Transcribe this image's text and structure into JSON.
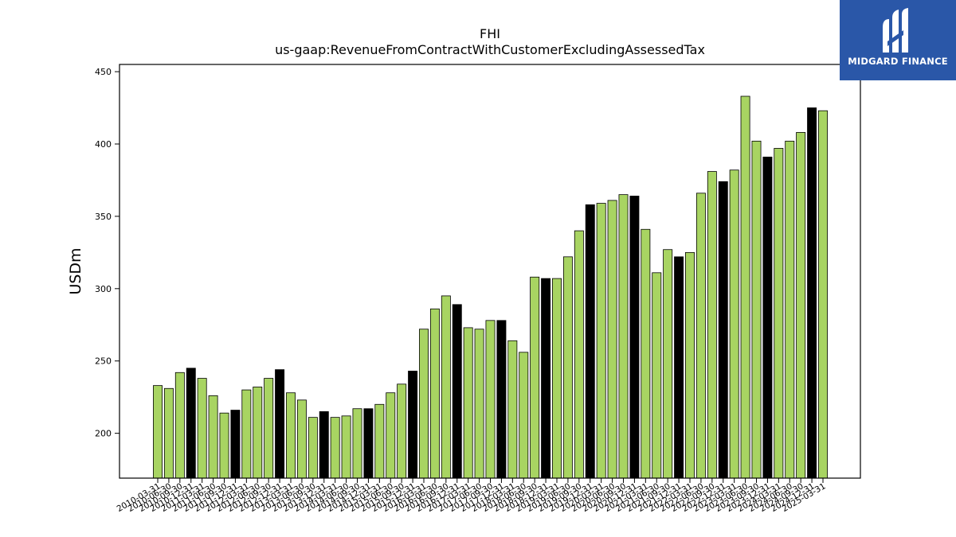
{
  "chart_data": {
    "type": "bar",
    "title": "FHI",
    "subtitle": "us-gaap:RevenueFromContractWithCustomerExcludingAssessedTax",
    "ylabel": "USDm",
    "xlabel": "",
    "ylim": [
      169,
      455
    ],
    "yticks": [
      200,
      250,
      300,
      350,
      400,
      450
    ],
    "grid": false,
    "colors": {
      "quarter": "#a8d462",
      "year_end": "#000000",
      "edge": "#000000"
    },
    "categories": [
      "2010-03-31",
      "2010-06-30",
      "2010-09-30",
      "2010-12-31",
      "2011-03-31",
      "2011-06-30",
      "2011-09-30",
      "2011-12-31",
      "2012-03-31",
      "2012-06-30",
      "2012-09-30",
      "2012-12-31",
      "2013-03-31",
      "2013-06-30",
      "2013-09-30",
      "2013-12-31",
      "2014-03-31",
      "2014-06-30",
      "2014-09-30",
      "2014-12-31",
      "2015-03-31",
      "2015-06-30",
      "2015-09-30",
      "2015-12-31",
      "2016-03-31",
      "2016-06-30",
      "2016-09-30",
      "2016-12-31",
      "2017-03-31",
      "2017-06-30",
      "2017-09-30",
      "2017-12-31",
      "2018-03-31",
      "2018-06-30",
      "2018-09-30",
      "2018-12-31",
      "2019-03-31",
      "2019-06-30",
      "2019-09-30",
      "2019-12-31",
      "2020-03-31",
      "2020-06-30",
      "2020-09-30",
      "2020-12-31",
      "2021-03-31",
      "2021-06-30",
      "2021-09-30",
      "2021-12-31",
      "2022-03-31",
      "2022-06-30",
      "2022-09-30",
      "2022-12-31",
      "2023-03-31",
      "2023-06-30",
      "2023-09-30",
      "2023-12-31",
      "2024-03-31",
      "2024-06-30",
      "2024-09-30",
      "2024-12-31",
      "2025-03-31"
    ],
    "values": [
      233,
      231,
      242,
      245,
      238,
      226,
      214,
      216,
      230,
      232,
      238,
      244,
      228,
      223,
      211,
      215,
      211,
      212,
      217,
      217,
      220,
      228,
      234,
      243,
      272,
      286,
      295,
      289,
      273,
      272,
      278,
      278,
      264,
      256,
      308,
      307,
      307,
      322,
      340,
      358,
      359,
      361,
      365,
      364,
      341,
      311,
      327,
      322,
      325,
      366,
      381,
      374,
      382,
      433,
      402,
      391,
      397,
      402,
      408,
      425,
      423
    ]
  },
  "logo": {
    "text": "MIDGARD FINANCE",
    "icon": "midgard-m-logo-icon"
  }
}
